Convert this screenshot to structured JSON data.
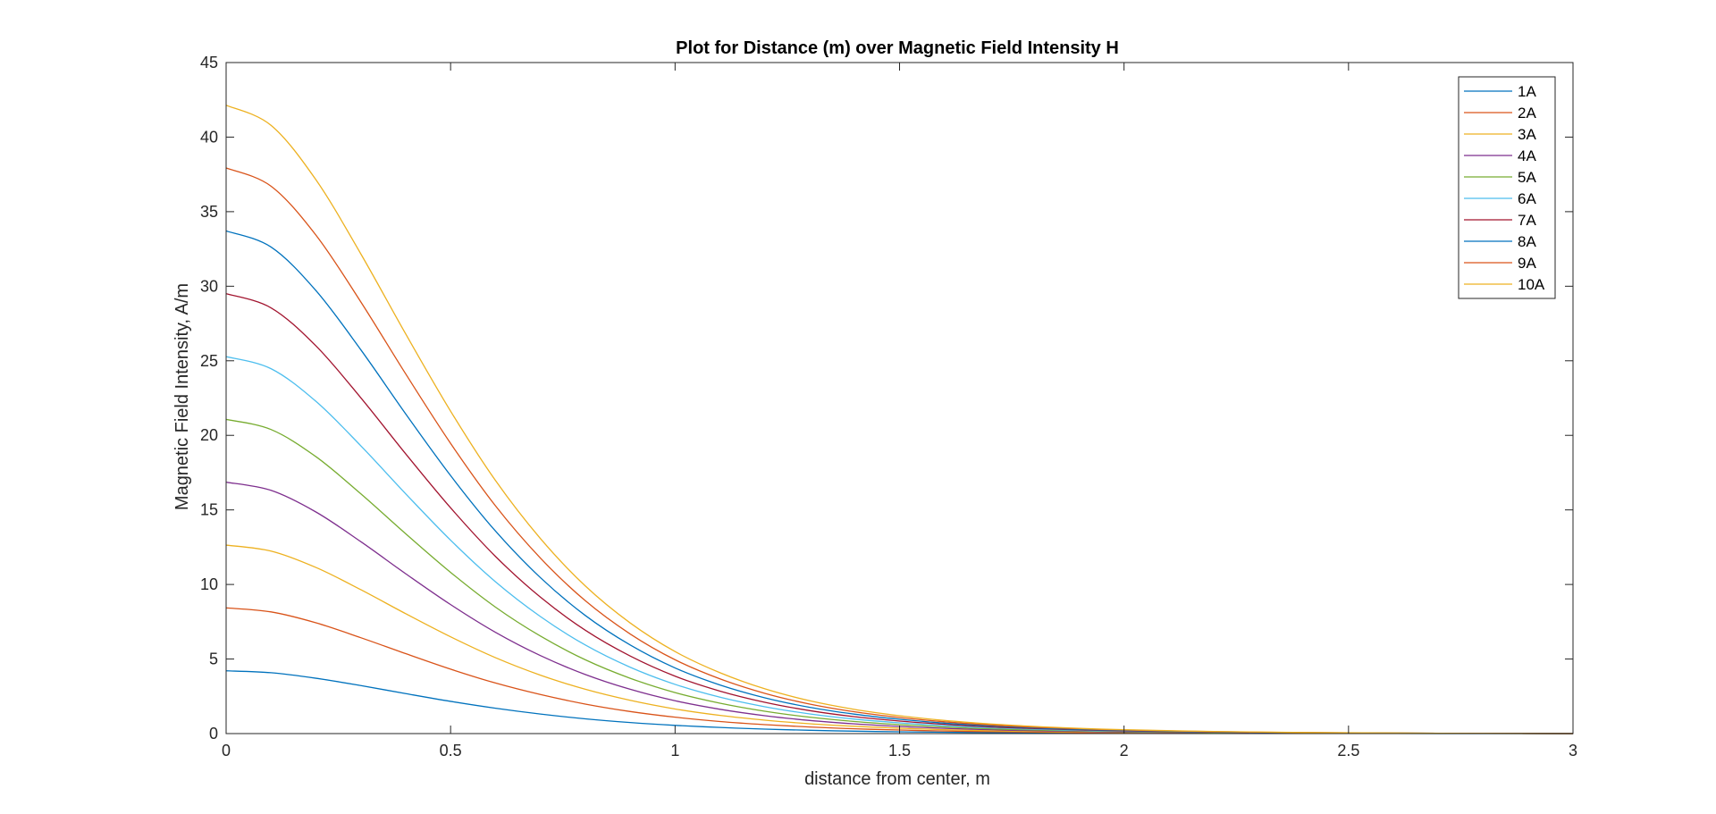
{
  "chart_data": {
    "type": "line",
    "title": "Plot for Distance (m) over Magnetic Field Intensity H",
    "xlabel": "distance from center, m",
    "ylabel": "Magnetic Field Intensity, A/m",
    "xlim": [
      0,
      3
    ],
    "ylim": [
      0,
      45
    ],
    "xticks": [
      0,
      0.5,
      1,
      1.5,
      2,
      2.5,
      3
    ],
    "xtick_labels": [
      "0",
      "0.5",
      "1",
      "1.5",
      "2",
      "2.5",
      "3"
    ],
    "yticks": [
      0,
      5,
      10,
      15,
      20,
      25,
      30,
      35,
      40,
      45
    ],
    "ytick_labels": [
      "0",
      "5",
      "10",
      "15",
      "20",
      "25",
      "30",
      "35",
      "40",
      "45"
    ],
    "grid": false,
    "legend_position": "top-right",
    "x": [
      0,
      0.1,
      0.2,
      0.3,
      0.4,
      0.5,
      0.6,
      0.7,
      0.8,
      0.9,
      1.0,
      1.1,
      1.2,
      1.3,
      1.4,
      1.5,
      1.6,
      1.7,
      1.8,
      1.9,
      2.0,
      2.2,
      2.4,
      2.6,
      2.8,
      3.0
    ],
    "series": [
      {
        "name": "1A",
        "color": "#0072BD",
        "values": [
          4.21,
          4.08,
          3.71,
          3.22,
          2.68,
          2.16,
          1.7,
          1.31,
          0.99,
          0.74,
          0.55,
          0.41,
          0.3,
          0.22,
          0.16,
          0.12,
          0.09,
          0.07,
          0.05,
          0.04,
          0.03,
          0.02,
          0.01,
          0.01,
          0.0,
          0.0
        ]
      },
      {
        "name": "2A",
        "color": "#D95319",
        "values": [
          8.43,
          8.16,
          7.43,
          6.43,
          5.36,
          4.32,
          3.39,
          2.62,
          1.98,
          1.48,
          1.1,
          0.81,
          0.6,
          0.44,
          0.32,
          0.24,
          0.17,
          0.13,
          0.1,
          0.07,
          0.05,
          0.03,
          0.02,
          0.01,
          0.01,
          0.0
        ]
      },
      {
        "name": "3A",
        "color": "#EDB120",
        "values": [
          12.64,
          12.24,
          11.14,
          9.65,
          8.04,
          6.49,
          5.09,
          3.92,
          2.97,
          2.23,
          1.65,
          1.22,
          0.9,
          0.66,
          0.49,
          0.36,
          0.26,
          0.19,
          0.14,
          0.11,
          0.08,
          0.04,
          0.03,
          0.02,
          0.01,
          0.0
        ]
      },
      {
        "name": "4A",
        "color": "#7E2F8E",
        "values": [
          16.86,
          16.31,
          14.86,
          12.87,
          10.72,
          8.65,
          6.79,
          5.23,
          3.96,
          2.97,
          2.2,
          1.63,
          1.2,
          0.88,
          0.65,
          0.48,
          0.35,
          0.26,
          0.19,
          0.14,
          0.1,
          0.06,
          0.03,
          0.02,
          0.01,
          0.0
        ]
      },
      {
        "name": "5A",
        "color": "#77AC30",
        "values": [
          21.07,
          20.39,
          18.57,
          16.08,
          13.4,
          10.81,
          8.48,
          6.54,
          4.95,
          3.71,
          2.75,
          2.04,
          1.5,
          1.1,
          0.81,
          0.6,
          0.44,
          0.32,
          0.24,
          0.18,
          0.13,
          0.07,
          0.04,
          0.02,
          0.01,
          0.0
        ]
      },
      {
        "name": "6A",
        "color": "#4DBEEE",
        "values": [
          25.28,
          24.47,
          22.28,
          19.3,
          16.08,
          12.97,
          10.18,
          7.85,
          5.94,
          4.45,
          3.3,
          2.44,
          1.8,
          1.32,
          0.97,
          0.72,
          0.53,
          0.39,
          0.29,
          0.21,
          0.16,
          0.09,
          0.05,
          0.03,
          0.01,
          0.0
        ]
      },
      {
        "name": "7A",
        "color": "#A2142F",
        "values": [
          29.5,
          28.55,
          26.0,
          22.52,
          18.76,
          15.14,
          11.88,
          9.15,
          6.93,
          5.2,
          3.85,
          2.85,
          2.1,
          1.54,
          1.13,
          0.84,
          0.62,
          0.45,
          0.34,
          0.25,
          0.18,
          0.1,
          0.05,
          0.03,
          0.01,
          0.0
        ]
      },
      {
        "name": "8A",
        "color": "#0072BD",
        "values": [
          33.71,
          32.63,
          29.71,
          25.74,
          21.44,
          17.3,
          13.58,
          10.46,
          7.92,
          5.94,
          4.4,
          3.26,
          2.4,
          1.76,
          1.3,
          0.96,
          0.7,
          0.52,
          0.38,
          0.28,
          0.21,
          0.11,
          0.06,
          0.03,
          0.01,
          0.0
        ]
      },
      {
        "name": "9A",
        "color": "#D95319",
        "values": [
          37.93,
          36.71,
          33.43,
          28.95,
          24.12,
          19.46,
          15.27,
          11.77,
          8.91,
          6.68,
          4.95,
          3.67,
          2.7,
          1.98,
          1.46,
          1.08,
          0.79,
          0.58,
          0.43,
          0.32,
          0.24,
          0.13,
          0.07,
          0.03,
          0.01,
          0.0
        ]
      },
      {
        "name": "10A",
        "color": "#EDB120",
        "values": [
          42.14,
          40.79,
          37.14,
          32.17,
          26.8,
          21.62,
          16.97,
          13.08,
          9.9,
          7.42,
          5.5,
          4.08,
          3.0,
          2.2,
          1.62,
          1.2,
          0.88,
          0.65,
          0.48,
          0.35,
          0.26,
          0.14,
          0.07,
          0.04,
          0.01,
          0.0
        ]
      }
    ]
  }
}
